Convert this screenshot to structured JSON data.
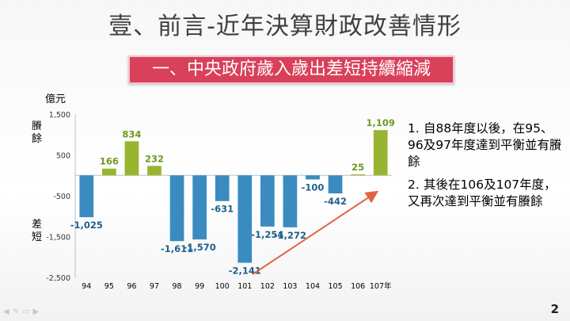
{
  "slide": {
    "title": "壹、前言-近年決算財政改善情形",
    "banner": "一、中央政府歲入歲出差短持續縮減",
    "notes": [
      {
        "num": "1.",
        "text": "自88年度以後，在95、96及97年度達到平衡並有賸餘"
      },
      {
        "num": "2.",
        "text": "其後在106及107年度，又再次達到平衡並有賸餘"
      }
    ],
    "page_number": "2",
    "toolbar_icons": [
      "arrow-left-icon",
      "pen-icon",
      "slides-icon",
      "arrow-right-icon"
    ]
  },
  "chart_data": {
    "type": "bar",
    "unit_label": "億元",
    "surplus_label": "賸餘",
    "deficit_label": "差短",
    "categories": [
      "94",
      "95",
      "96",
      "97",
      "98",
      "99",
      "100",
      "101",
      "102",
      "103",
      "104",
      "105",
      "106",
      "107年"
    ],
    "values": [
      -1025,
      166,
      834,
      232,
      -1611,
      -1570,
      -631,
      -2141,
      -1254,
      -1272,
      -100,
      -442,
      25,
      1109
    ],
    "value_labels": [
      "-1,025",
      "166",
      "834",
      "232",
      "-1,611",
      "-1,570",
      "-631",
      "-2,141",
      "-1,254",
      "-1,272",
      "-100",
      "-442",
      "25",
      "1,109"
    ],
    "ylim": [
      -2500,
      1500
    ],
    "yticks": [
      1500,
      500,
      -500,
      -1500,
      -2500
    ],
    "ytick_labels": [
      "1,500",
      "500",
      "-500",
      "-1,500",
      "-2,500"
    ],
    "colors": {
      "surplus": "#98b531",
      "deficit": "#3a8cc0",
      "surplus_text": "#6a9a1f",
      "deficit_text": "#1f5f8b",
      "trend_arrow": "#e2643f"
    },
    "trend_arrow": {
      "from": "101",
      "to": "107年",
      "direction": "up"
    },
    "grid": false
  }
}
